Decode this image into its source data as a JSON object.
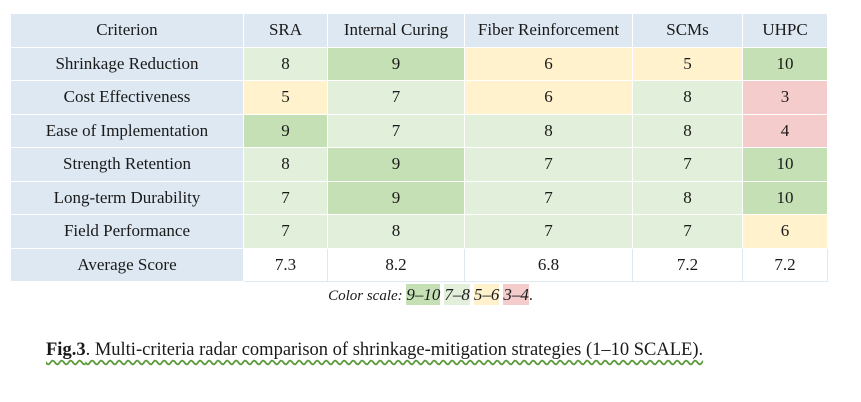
{
  "table": {
    "headers": [
      "Criterion",
      "SRA",
      "Internal Curing",
      "Fiber Reinforcement",
      "SCMs",
      "UHPC"
    ],
    "rows": [
      {
        "criterion": "Shrinkage Reduction",
        "values": [
          "8",
          "9",
          "6",
          "5",
          "10"
        ],
        "tiers": [
          "mid",
          "high",
          "low",
          "low",
          "high"
        ]
      },
      {
        "criterion": "Cost Effectiveness",
        "values": [
          "5",
          "7",
          "6",
          "8",
          "3"
        ],
        "tiers": [
          "low",
          "mid",
          "low",
          "mid",
          "bad"
        ]
      },
      {
        "criterion": "Ease of Implementation",
        "values": [
          "9",
          "7",
          "8",
          "8",
          "4"
        ],
        "tiers": [
          "high",
          "mid",
          "mid",
          "mid",
          "bad"
        ]
      },
      {
        "criterion": "Strength Retention",
        "values": [
          "8",
          "9",
          "7",
          "7",
          "10"
        ],
        "tiers": [
          "mid",
          "high",
          "mid",
          "mid",
          "high"
        ]
      },
      {
        "criterion": "Long-term Durability",
        "values": [
          "7",
          "9",
          "7",
          "8",
          "10"
        ],
        "tiers": [
          "mid",
          "high",
          "mid",
          "mid",
          "high"
        ]
      },
      {
        "criterion": "Field Performance",
        "values": [
          "7",
          "8",
          "7",
          "7",
          "6"
        ],
        "tiers": [
          "mid",
          "mid",
          "mid",
          "mid",
          "low"
        ]
      }
    ],
    "average": {
      "criterion": "Average Score",
      "values": [
        "7.3",
        "8.2",
        "6.8",
        "7.2",
        "7.2"
      ]
    }
  },
  "legend": {
    "label": "Color scale: ",
    "high": "9–10",
    "mid": "7–8",
    "low": "5–6",
    "bad": "3–4",
    "end": "."
  },
  "caption": {
    "fig": "Fig.3",
    "text": ". Multi-criteria radar comparison of shrinkage-mitigation strategies (1–10 SCALE)."
  },
  "colors": {
    "header_bg": "#dde8f2",
    "high": "#c5e0b4",
    "mid": "#e2efda",
    "low": "#fff2cc",
    "bad": "#f4cccc"
  }
}
